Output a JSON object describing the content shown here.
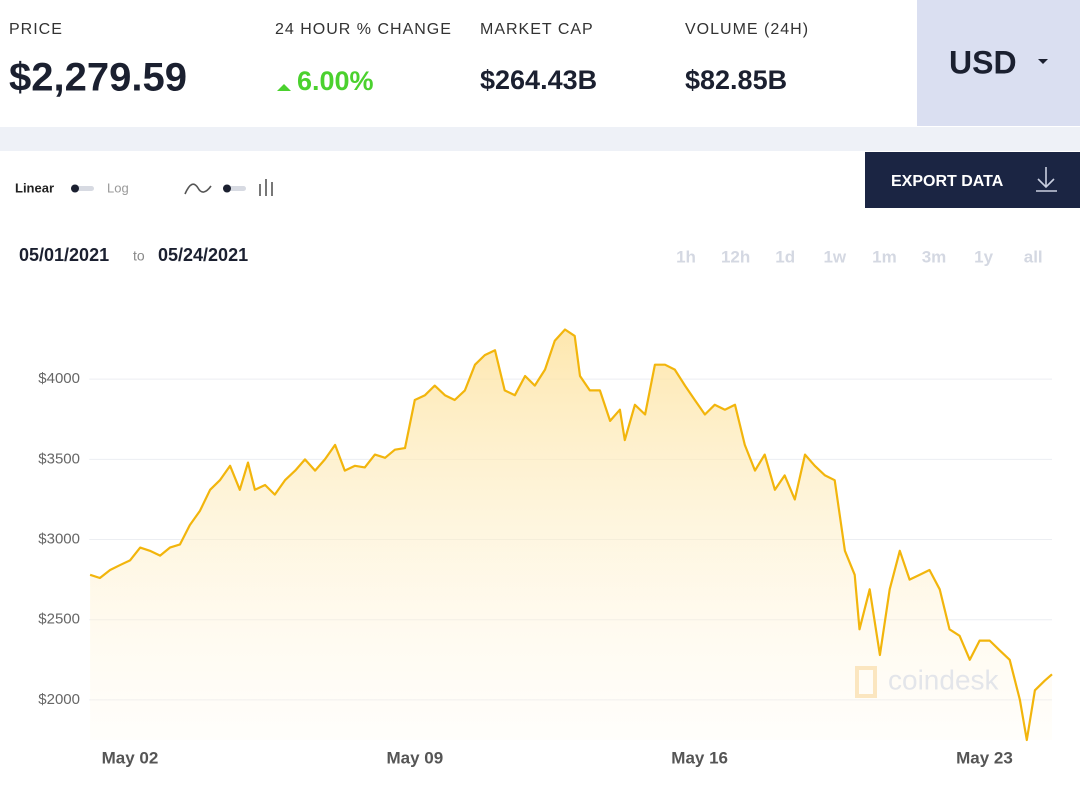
{
  "header": {
    "price_label": "PRICE",
    "price": "$2,279.59",
    "change_label": "24 HOUR % CHANGE",
    "change": "6.00%",
    "market_cap_label": "MARKET CAP",
    "market_cap": "$264.43B",
    "volume_label": "VOLUME (24H)",
    "volume": "$82.85B",
    "currency": "USD"
  },
  "controls": {
    "linear": "Linear",
    "log": "Log",
    "export": "EXPORT DATA",
    "date_from": "05/01/2021",
    "date_to_word": "to",
    "date_to": "05/24/2021",
    "ranges": [
      "1h",
      "12h",
      "1d",
      "1w",
      "1m",
      "3m",
      "1y",
      "all"
    ]
  },
  "chart_data": {
    "type": "line",
    "watermark": "coindesk",
    "color": "#f2b50c",
    "grid": true,
    "log_scale": false,
    "x": [
      1.02,
      1.26,
      1.51,
      1.75,
      2.0,
      2.25,
      2.49,
      2.74,
      2.98,
      3.23,
      3.47,
      3.72,
      3.97,
      4.21,
      4.46,
      4.7,
      4.9,
      5.07,
      5.32,
      5.56,
      5.81,
      6.06,
      6.3,
      6.55,
      6.79,
      7.04,
      7.28,
      7.53,
      7.77,
      8.02,
      8.27,
      8.51,
      8.76,
      9.0,
      9.25,
      9.49,
      9.74,
      9.98,
      10.23,
      10.48,
      10.72,
      10.97,
      11.21,
      11.46,
      11.71,
      11.95,
      12.2,
      12.44,
      12.69,
      12.93,
      13.06,
      13.3,
      13.55,
      13.8,
      14.04,
      14.16,
      14.41,
      14.66,
      14.9,
      15.15,
      15.39,
      15.64,
      15.88,
      16.13,
      16.37,
      16.62,
      16.87,
      17.11,
      17.36,
      17.6,
      17.85,
      18.09,
      18.34,
      18.59,
      18.83,
      19.08,
      19.32,
      19.57,
      19.81,
      19.93,
      20.18,
      20.43,
      20.67,
      20.92,
      21.16,
      21.41,
      21.65,
      21.9,
      22.14,
      22.39,
      22.64,
      22.88,
      23.13,
      23.37,
      23.62,
      23.87,
      24.04,
      24.24,
      24.48,
      24.66
    ],
    "values": [
      2780,
      2760,
      2810,
      2840,
      2870,
      2950,
      2930,
      2900,
      2950,
      2970,
      3090,
      3180,
      3310,
      3370,
      3460,
      3310,
      3480,
      3310,
      3340,
      3280,
      3370,
      3430,
      3500,
      3430,
      3500,
      3590,
      3430,
      3460,
      3450,
      3530,
      3510,
      3560,
      3570,
      3870,
      3900,
      3960,
      3900,
      3870,
      3930,
      4090,
      4150,
      4180,
      3930,
      3900,
      4020,
      3960,
      4060,
      4240,
      4310,
      4270,
      4020,
      3930,
      3930,
      3740,
      3810,
      3620,
      3840,
      3780,
      4090,
      4090,
      4060,
      3960,
      3870,
      3780,
      3840,
      3810,
      3840,
      3590,
      3430,
      3530,
      3310,
      3400,
      3250,
      3530,
      3460,
      3400,
      3370,
      2930,
      2780,
      2440,
      2690,
      2280,
      2690,
      2930,
      2750,
      2780,
      2810,
      2690,
      2440,
      2400,
      2250,
      2370,
      2370,
      2310,
      2250,
      2000,
      1750,
      2060,
      2120,
      2160
    ],
    "xlim": [
      1,
      24.66
    ],
    "xticks": [
      {
        "value": 2,
        "label": "May 02"
      },
      {
        "value": 9,
        "label": "May 09"
      },
      {
        "value": 16,
        "label": "May 16"
      },
      {
        "value": 23,
        "label": "May 23"
      }
    ],
    "ylim": [
      1750,
      4500
    ],
    "yticks": [
      {
        "value": 2000,
        "label": "$2000"
      },
      {
        "value": 2500,
        "label": "$2500"
      },
      {
        "value": 3000,
        "label": "$3000"
      },
      {
        "value": 3500,
        "label": "$3500"
      },
      {
        "value": 4000,
        "label": "$4000"
      }
    ]
  }
}
